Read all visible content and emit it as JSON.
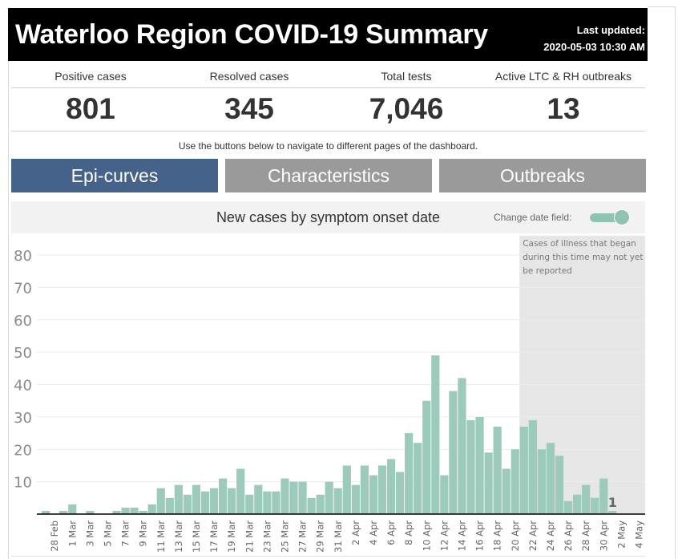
{
  "header": {
    "title": "Waterloo Region COVID-19 Summary",
    "last_updated_label": "Last updated:",
    "last_updated_value": "2020-05-03 10:30 AM"
  },
  "kpis": [
    {
      "label": "Positive cases",
      "value": "801"
    },
    {
      "label": "Resolved cases",
      "value": "345"
    },
    {
      "label": "Total tests",
      "value": "7,046"
    },
    {
      "label": "Active LTC & RH outbreaks",
      "value": "13"
    }
  ],
  "nav": {
    "hint": "Use the buttons below to navigate to different pages of the dashboard.",
    "buttons": [
      {
        "label": "Epi-curves",
        "active": true
      },
      {
        "label": "Characteristics",
        "active": false
      },
      {
        "label": "Outbreaks",
        "active": false
      }
    ]
  },
  "chart_header": {
    "title": "New cases by symptom onset date",
    "toggle_label": "Change date field:"
  },
  "colors": {
    "bar": "#9ccabb",
    "active_button": "#44628a",
    "inactive_button": "#9a9a9a",
    "shaded_region": "#e6e6e6"
  },
  "chart_data": {
    "type": "bar",
    "title": "New cases by symptom onset date",
    "xlabel": "",
    "ylabel": "",
    "ylim": [
      0,
      80
    ],
    "yticks": [
      10,
      20,
      30,
      40,
      50,
      60,
      70,
      80
    ],
    "grid": true,
    "categories": [
      "27 Feb",
      "28 Feb",
      "29 Feb",
      "1 Mar",
      "2 Mar",
      "3 Mar",
      "4 Mar",
      "5 Mar",
      "6 Mar",
      "7 Mar",
      "8 Mar",
      "9 Mar",
      "10 Mar",
      "11 Mar",
      "12 Mar",
      "13 Mar",
      "14 Mar",
      "15 Mar",
      "16 Mar",
      "17 Mar",
      "18 Mar",
      "19 Mar",
      "20 Mar",
      "21 Mar",
      "22 Mar",
      "23 Mar",
      "24 Mar",
      "25 Mar",
      "26 Mar",
      "27 Mar",
      "28 Mar",
      "29 Mar",
      "30 Mar",
      "31 Mar",
      "1 Apr",
      "2 Apr",
      "3 Apr",
      "4 Apr",
      "5 Apr",
      "6 Apr",
      "7 Apr",
      "8 Apr",
      "9 Apr",
      "10 Apr",
      "11 Apr",
      "12 Apr",
      "13 Apr",
      "14 Apr",
      "15 Apr",
      "16 Apr",
      "17 Apr",
      "18 Apr",
      "19 Apr",
      "20 Apr",
      "21 Apr",
      "22 Apr",
      "23 Apr",
      "24 Apr",
      "25 Apr",
      "26 Apr",
      "27 Apr",
      "28 Apr",
      "29 Apr",
      "30 Apr",
      "1 May",
      "2 May",
      "3 May",
      "4 May"
    ],
    "values": [
      1,
      0,
      1,
      3,
      0,
      1,
      0,
      0,
      1,
      2,
      2,
      1,
      3,
      8,
      5,
      9,
      6,
      9,
      7,
      8,
      11,
      8,
      14,
      6,
      9,
      7,
      7,
      11,
      10,
      10,
      5,
      6,
      10,
      8,
      15,
      9,
      15,
      12,
      15,
      17,
      13,
      25,
      22,
      35,
      49,
      12,
      38,
      42,
      29,
      30,
      19,
      27,
      14,
      20,
      27,
      29,
      20,
      22,
      18,
      4,
      6,
      9,
      5,
      11,
      1,
      0,
      0,
      0
    ],
    "x_tick_labels": [
      "28 Feb",
      "1 Mar",
      "3 Mar",
      "5 Mar",
      "7 Mar",
      "9 Mar",
      "11 Mar",
      "13 Mar",
      "15 Mar",
      "17 Mar",
      "19 Mar",
      "21 Mar",
      "23 Mar",
      "25 Mar",
      "27 Mar",
      "29 Mar",
      "31 Mar",
      "2 Apr",
      "4 Apr",
      "6 Apr",
      "8 Apr",
      "10 Apr",
      "12 Apr",
      "14 Apr",
      "16 Apr",
      "18 Apr",
      "20 Apr",
      "22 Apr",
      "24 Apr",
      "26 Apr",
      "28 Apr",
      "30 Apr",
      "2 May",
      "4 May"
    ],
    "data_labels": [
      {
        "category": "1 May",
        "text": "1"
      }
    ],
    "annotation": {
      "text_lines": [
        "Cases of illness that began",
        "during this time may not yet",
        "be reported"
      ],
      "shaded_from": "21 Apr",
      "shaded_to": "4 May"
    }
  }
}
